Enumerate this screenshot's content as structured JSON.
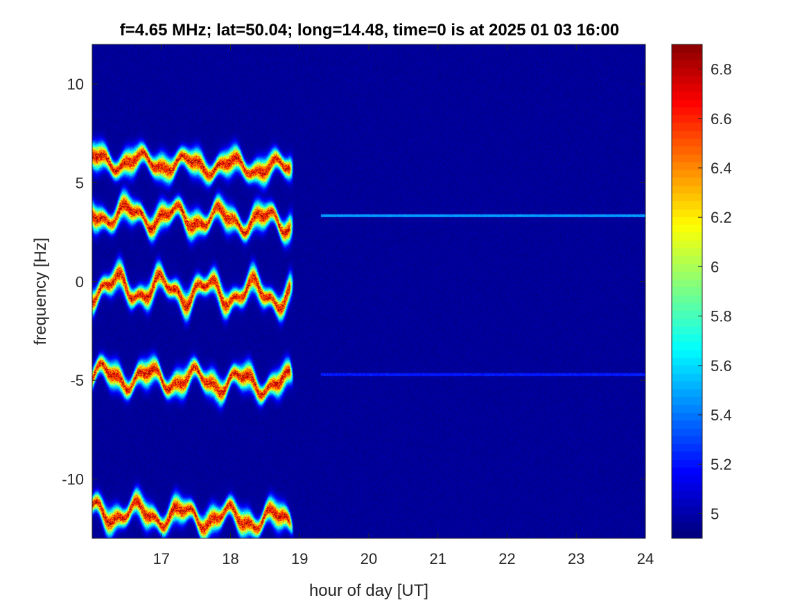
{
  "chart_data": {
    "type": "heatmap",
    "title": "f=4.65 MHz;  lat=50.04; long=14.48, time=0 is at 2025 01 03 16:00",
    "xlabel": "hour of day [UT]",
    "ylabel": "frequency [Hz]",
    "xlim": [
      16,
      24
    ],
    "ylim": [
      -13,
      12
    ],
    "xticks": [
      17,
      18,
      19,
      20,
      21,
      22,
      23,
      24
    ],
    "yticks": [
      -10,
      -5,
      0,
      5,
      10
    ],
    "xtick_labels": [
      "17",
      "18",
      "19",
      "20",
      "21",
      "22",
      "23",
      "24"
    ],
    "ytick_labels": [
      "-10",
      "-5",
      "0",
      "5",
      "10"
    ],
    "colorbar": {
      "range": [
        4.9,
        6.9
      ],
      "ticks": [
        5,
        5.2,
        5.4,
        5.6,
        5.8,
        6,
        6.2,
        6.4,
        6.6,
        6.8
      ],
      "tick_labels": [
        "5",
        "5.2",
        "5.4",
        "5.6",
        "5.8",
        "6",
        "6.2",
        "6.4",
        "6.6",
        "6.8"
      ],
      "colormap": "jet"
    },
    "grid": false,
    "background_value": 4.95,
    "active_until_hour": 18.85,
    "bands": [
      {
        "center_hz": 6.0,
        "amplitude": 0.35,
        "peak_value": 6.8
      },
      {
        "center_hz": 3.3,
        "amplitude": 0.45,
        "peak_value": 6.8
      },
      {
        "center_hz": -0.4,
        "amplitude": 0.55,
        "peak_value": 6.8
      },
      {
        "center_hz": -4.9,
        "amplitude": 0.45,
        "peak_value": 6.8
      },
      {
        "center_hz": -11.8,
        "amplitude": 0.45,
        "peak_value": 6.8
      }
    ],
    "steady_lines": [
      {
        "hz": 3.35,
        "from_hour": 19.3,
        "to_hour": 24,
        "value": 5.45
      },
      {
        "hz": -4.7,
        "from_hour": 19.3,
        "to_hour": 24,
        "value": 5.2
      }
    ]
  }
}
